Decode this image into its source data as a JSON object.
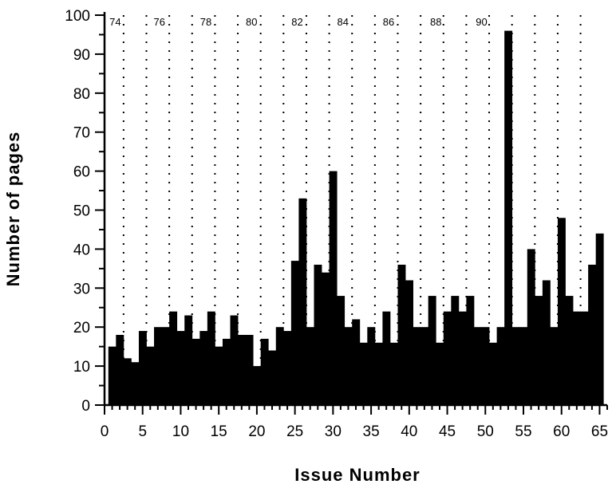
{
  "chart_data": {
    "type": "bar",
    "title": "",
    "xlabel": "Issue Number",
    "ylabel": "Number of pages",
    "xlim": [
      0,
      66
    ],
    "ylim": [
      0,
      100
    ],
    "xticks": [
      0,
      5,
      10,
      15,
      20,
      25,
      30,
      35,
      40,
      45,
      50,
      55,
      60,
      65
    ],
    "yticks": [
      0,
      10,
      20,
      30,
      40,
      50,
      60,
      70,
      80,
      90,
      100
    ],
    "grid": "vertical dotted lines at year boundaries",
    "bar_color": "#000000",
    "x": [
      1,
      2,
      3,
      4,
      5,
      6,
      7,
      8,
      9,
      10,
      11,
      12,
      13,
      14,
      15,
      16,
      17,
      18,
      19,
      20,
      21,
      22,
      23,
      24,
      25,
      26,
      27,
      28,
      29,
      30,
      31,
      32,
      33,
      34,
      35,
      36,
      37,
      38,
      39,
      40,
      41,
      42,
      43,
      44,
      45,
      46,
      47,
      48,
      49,
      50,
      51,
      52,
      53,
      54,
      55,
      56,
      57,
      58,
      59,
      60,
      61,
      62,
      63,
      64,
      65
    ],
    "values": [
      15,
      18,
      12,
      11,
      19,
      15,
      20,
      20,
      24,
      19,
      23,
      17,
      19,
      24,
      15,
      17,
      23,
      18,
      18,
      10,
      17,
      14,
      20,
      19,
      37,
      53,
      20,
      36,
      34,
      60,
      28,
      20,
      22,
      16,
      20,
      16,
      24,
      16,
      36,
      32,
      20,
      20,
      28,
      16,
      24,
      28,
      24,
      28,
      20,
      20,
      16,
      20,
      96,
      20,
      20,
      40,
      28,
      32,
      20,
      48,
      28,
      24,
      24,
      36,
      44
    ],
    "year_boundaries": [
      2.5,
      5.5,
      8.5,
      11.5,
      14.5,
      17.5,
      20.5,
      23.5,
      26.5,
      29.5,
      32.5,
      35.5,
      38.5,
      41.5,
      44.5,
      47.5,
      50.5,
      53.5,
      56.5,
      59.5,
      62.5
    ],
    "year_labels": [
      {
        "label": "74",
        "x": 1.4
      },
      {
        "label": "76",
        "x": 7.2
      },
      {
        "label": "78",
        "x": 13.3
      },
      {
        "label": "80",
        "x": 19.3
      },
      {
        "label": "82",
        "x": 25.3
      },
      {
        "label": "84",
        "x": 31.3
      },
      {
        "label": "86",
        "x": 37.3
      },
      {
        "label": "88",
        "x": 43.5
      },
      {
        "label": "90",
        "x": 49.5
      }
    ]
  }
}
